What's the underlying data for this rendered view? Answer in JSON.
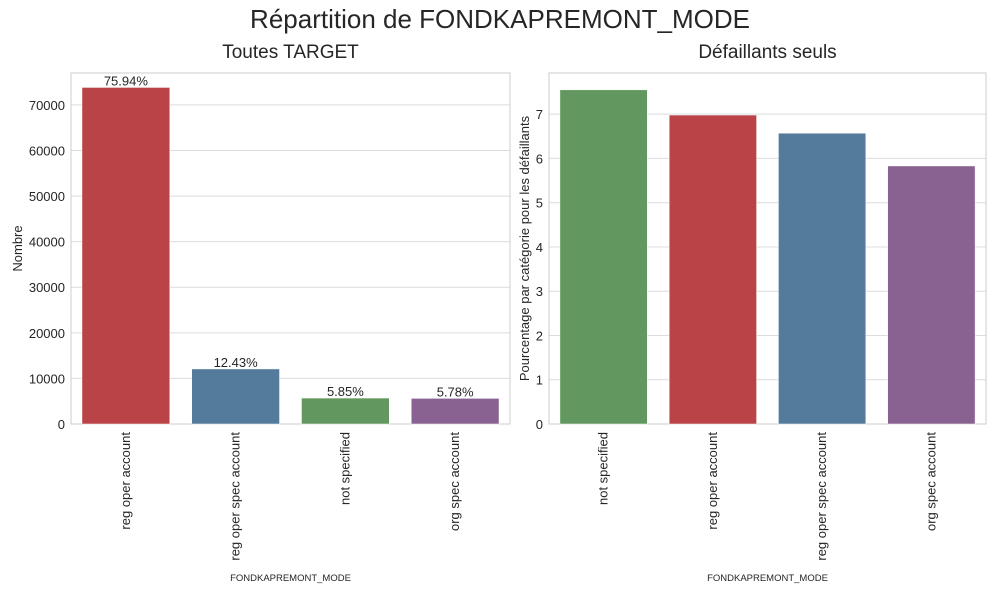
{
  "figure": {
    "title": "Répartition de FONDKAPREMONT_MODE"
  },
  "colors": {
    "red": "#b94346",
    "blue": "#547b9b",
    "green": "#62985f",
    "purple": "#8a6291",
    "grid": "#dcdcdc",
    "axis_frame": "#cccccc",
    "text": "#262626"
  },
  "chart_data": [
    {
      "type": "bar",
      "title": "Toutes TARGET",
      "xlabel": "FONDKAPREMONT_MODE",
      "ylabel": "Nombre",
      "ylim": [
        0,
        77000
      ],
      "yticks": [
        0,
        10000,
        20000,
        30000,
        40000,
        50000,
        60000,
        70000
      ],
      "grid": true,
      "categories": [
        "reg oper account",
        "reg oper spec account",
        "not specified",
        "org spec account"
      ],
      "values": [
        73830,
        12080,
        5690,
        5620
      ],
      "data_labels": [
        "75.94%",
        "12.43%",
        "5.85%",
        "5.78%"
      ],
      "bar_colors": [
        "#b94346",
        "#547b9b",
        "#62985f",
        "#8a6291"
      ]
    },
    {
      "type": "bar",
      "title": "Défaillants seuls",
      "xlabel": "FONDKAPREMONT_MODE",
      "ylabel": "Pourcentage par catégorie pour les défaillants",
      "ylim": [
        0,
        7.93
      ],
      "yticks": [
        0,
        1,
        2,
        3,
        4,
        5,
        6,
        7
      ],
      "grid": true,
      "categories": [
        "not specified",
        "reg oper account",
        "reg oper spec account",
        "org spec account"
      ],
      "values": [
        7.55,
        6.98,
        6.57,
        5.83
      ],
      "bar_colors": [
        "#62985f",
        "#b94346",
        "#547b9b",
        "#8a6291"
      ]
    }
  ]
}
